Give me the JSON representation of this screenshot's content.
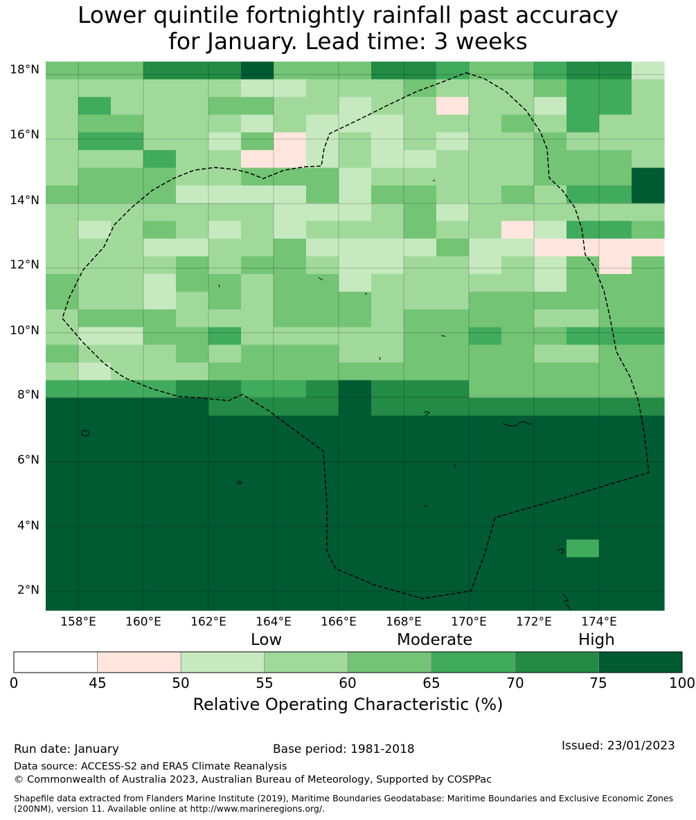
{
  "header": {
    "title_line1": "Lower quintile fortnightly rainfall past accuracy",
    "title_line2": "for January. Lead time: 3 weeks"
  },
  "map": {
    "lat_labels": [
      "18°N",
      "16°N",
      "14°N",
      "12°N",
      "10°N",
      "8°N",
      "6°N",
      "4°N",
      "2°N"
    ],
    "lon_labels": [
      "158°E",
      "160°E",
      "162°E",
      "164°E",
      "166°E",
      "168°E",
      "170°E",
      "172°E",
      "174°E"
    ],
    "lon_range": [
      157,
      176
    ],
    "lat_range": [
      1.4,
      18.4
    ],
    "region_boundary": "Marshall Islands EEZ (dashed)",
    "grid_cell_classes": [
      "4446667444665445662",
      "3333332233343334553",
      "3533344332331332553",
      "3443332322233343533",
      "3553324123232334333",
      "3335331123223334443",
      "3444334442333334447",
      "4444222242443343557",
      "3333333222342333333",
      "3234323233343312554",
      "3332233422224221111",
      "3333434432233232414",
      "4332443442333332444",
      "4332343444333444444",
      "3444333444344443344",
      "3224453333344544555",
      "4333434443344443344",
      "3233344444444444444",
      "5555665567666444444",
      "7777766667666666666",
      "7777777777777777777",
      "7777777777777777777",
      "7777777777777777777",
      "7777777777777777777",
      "7777777777777777777",
      "7777777777777777777",
      "7777777777777777777",
      "7777777777777777577",
      "7777777777777777777",
      "7777777777777777777",
      "7777777777777777777"
    ]
  },
  "legend": {
    "categories": [
      "Low",
      "Moderate",
      "High"
    ],
    "tick_labels": [
      "0",
      "45",
      "50",
      "55",
      "60",
      "65",
      "70",
      "75",
      "100"
    ],
    "colors": [
      "#ffffff",
      "#fee6de",
      "#c7e9c0",
      "#a1d99b",
      "#74c476",
      "#41ab5d",
      "#238b45",
      "#005a32"
    ],
    "axis_label": "Relative Operating Characteristic (%)"
  },
  "footer": {
    "run_date": "Run date: January",
    "base_period": "Base period: 1981-2018",
    "issued": "Issued: 23/01/2023",
    "data_source": "Data source: ACCESS-S2 and ERA5 Climate Reanalysis",
    "copyright": "© Commonwealth of Australia 2023, Australian Bureau of Meteorology, Supported by COSPPac",
    "shapefile_note": "Shapefile data extracted from Flanders Marine Institute (2019), Maritime Boundaries Geodatabase: Maritime Boundaries and Exclusive Economic Zones (200NM), version 11. Available online at http://www.marineregions.org/."
  }
}
